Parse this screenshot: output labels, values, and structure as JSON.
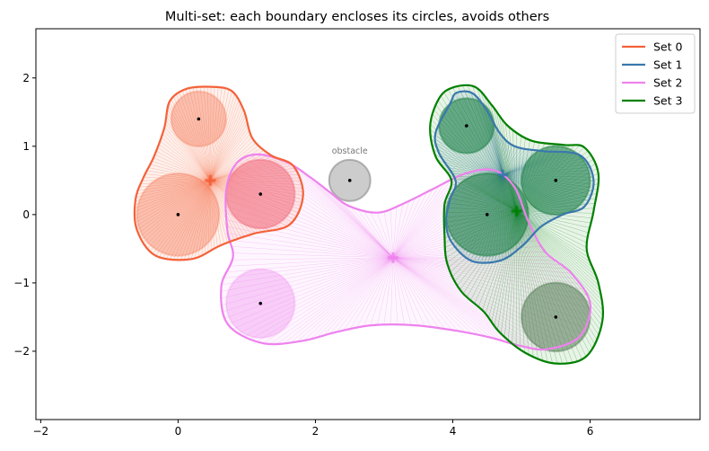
{
  "chart_data": {
    "type": "scatter",
    "title": "Multi-set: each boundary encloses its circles, avoids others",
    "xlim": [
      -2.07,
      7.6
    ],
    "ylim": [
      -3.0,
      2.72
    ],
    "xticks": [
      -2,
      0,
      2,
      4,
      6
    ],
    "yticks": [
      -2,
      -1,
      0,
      1,
      2
    ],
    "grid": false,
    "legend_position": "top-right",
    "series": [
      {
        "name": "Set 0",
        "color": "#f4623a",
        "circles": [
          {
            "x": 0.0,
            "y": 0.0,
            "r": 0.6
          },
          {
            "x": 0.3,
            "y": 1.4,
            "r": 0.4
          },
          {
            "x": 1.2,
            "y": 0.3,
            "r": 0.5
          }
        ],
        "centroid": {
          "x": 0.47,
          "y": 0.5
        },
        "boundary": [
          [
            0.48,
            1.87
          ],
          [
            0.78,
            1.81
          ],
          [
            0.96,
            1.52
          ],
          [
            1.08,
            1.12
          ],
          [
            1.35,
            0.87
          ],
          [
            1.68,
            0.71
          ],
          [
            1.82,
            0.28
          ],
          [
            1.62,
            -0.15
          ],
          [
            1.1,
            -0.28
          ],
          [
            0.62,
            -0.45
          ],
          [
            0.2,
            -0.65
          ],
          [
            -0.33,
            -0.6
          ],
          [
            -0.6,
            -0.22
          ],
          [
            -0.62,
            0.22
          ],
          [
            -0.5,
            0.55
          ],
          [
            -0.35,
            0.85
          ],
          [
            -0.2,
            1.27
          ],
          [
            -0.12,
            1.66
          ],
          [
            0.12,
            1.84
          ]
        ]
      },
      {
        "name": "Set 1",
        "color": "#3a78ad",
        "circles": [
          {
            "x": 4.2,
            "y": 1.3,
            "r": 0.4
          },
          {
            "x": 4.5,
            "y": 0.0,
            "r": 0.6
          },
          {
            "x": 5.5,
            "y": 0.5,
            "r": 0.5
          }
        ],
        "centroid": {
          "x": 4.73,
          "y": 0.58
        },
        "boundary": [
          [
            3.96,
            1.62
          ],
          [
            4.05,
            1.78
          ],
          [
            4.28,
            1.78
          ],
          [
            4.48,
            1.55
          ],
          [
            4.68,
            1.2
          ],
          [
            4.9,
            1.0
          ],
          [
            5.3,
            0.93
          ],
          [
            5.85,
            0.87
          ],
          [
            6.05,
            0.5
          ],
          [
            5.92,
            0.12
          ],
          [
            5.6,
            0.0
          ],
          [
            5.28,
            -0.18
          ],
          [
            5.02,
            -0.45
          ],
          [
            4.7,
            -0.67
          ],
          [
            4.28,
            -0.68
          ],
          [
            3.98,
            -0.4
          ],
          [
            3.9,
            -0.1
          ],
          [
            3.96,
            0.22
          ],
          [
            4.04,
            0.5
          ],
          [
            3.8,
            0.9
          ],
          [
            3.75,
            1.2
          ]
        ]
      },
      {
        "name": "Set 2",
        "color": "#ee82ee",
        "circles": [
          {
            "x": 1.2,
            "y": 0.3,
            "r": 0.5
          },
          {
            "x": 1.2,
            "y": -1.3,
            "r": 0.5
          },
          {
            "x": 5.5,
            "y": -1.5,
            "r": 0.5
          }
        ],
        "centroid": {
          "x": 3.13,
          "y": -0.63
        },
        "boundary": [
          [
            1.15,
            0.88
          ],
          [
            1.58,
            0.77
          ],
          [
            1.92,
            0.55
          ],
          [
            2.22,
            0.32
          ],
          [
            2.5,
            0.12
          ],
          [
            2.92,
            0.03
          ],
          [
            3.32,
            0.18
          ],
          [
            3.72,
            0.38
          ],
          [
            4.18,
            0.6
          ],
          [
            4.6,
            0.65
          ],
          [
            4.9,
            0.4
          ],
          [
            5.1,
            -0.1
          ],
          [
            5.35,
            -0.55
          ],
          [
            5.72,
            -0.85
          ],
          [
            6.0,
            -1.3
          ],
          [
            5.85,
            -1.78
          ],
          [
            5.38,
            -1.97
          ],
          [
            4.98,
            -1.92
          ],
          [
            4.55,
            -1.8
          ],
          [
            4.05,
            -1.7
          ],
          [
            3.45,
            -1.62
          ],
          [
            2.82,
            -1.62
          ],
          [
            2.3,
            -1.72
          ],
          [
            1.8,
            -1.85
          ],
          [
            1.22,
            -1.88
          ],
          [
            0.72,
            -1.6
          ],
          [
            0.63,
            -1.05
          ],
          [
            0.8,
            -0.62
          ],
          [
            0.72,
            -0.25
          ],
          [
            0.7,
            0.35
          ],
          [
            0.85,
            0.75
          ]
        ]
      },
      {
        "name": "Set 3",
        "color": "#008000",
        "circles": [
          {
            "x": 4.2,
            "y": 1.3,
            "r": 0.4
          },
          {
            "x": 4.5,
            "y": 0.0,
            "r": 0.6
          },
          {
            "x": 5.5,
            "y": 0.5,
            "r": 0.5
          },
          {
            "x": 5.5,
            "y": -1.5,
            "r": 0.5
          }
        ],
        "centroid": {
          "x": 4.93,
          "y": 0.05
        },
        "boundary": [
          [
            4.0,
            1.86
          ],
          [
            4.32,
            1.87
          ],
          [
            4.57,
            1.6
          ],
          [
            4.8,
            1.3
          ],
          [
            5.15,
            1.08
          ],
          [
            5.62,
            1.02
          ],
          [
            5.92,
            0.98
          ],
          [
            6.12,
            0.6
          ],
          [
            6.05,
            0.05
          ],
          [
            5.95,
            -0.5
          ],
          [
            6.12,
            -1.0
          ],
          [
            6.18,
            -1.55
          ],
          [
            5.95,
            -2.07
          ],
          [
            5.5,
            -2.18
          ],
          [
            5.05,
            -2.02
          ],
          [
            4.68,
            -1.72
          ],
          [
            4.45,
            -1.42
          ],
          [
            4.12,
            -1.12
          ],
          [
            3.92,
            -0.72
          ],
          [
            3.88,
            -0.3
          ],
          [
            3.88,
            0.15
          ],
          [
            3.98,
            0.5
          ],
          [
            3.75,
            0.85
          ],
          [
            3.67,
            1.3
          ],
          [
            3.8,
            1.7
          ]
        ]
      }
    ],
    "obstacle": {
      "x": 2.5,
      "y": 0.5,
      "r": 0.3,
      "label": "obstacle",
      "color": "#999999"
    }
  }
}
